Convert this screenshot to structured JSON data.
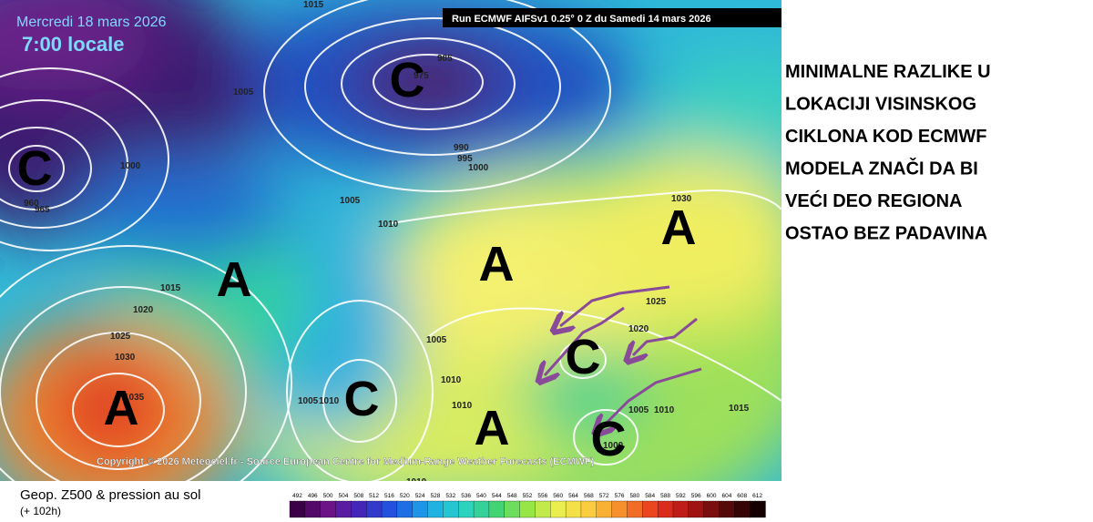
{
  "map": {
    "date": "Mercredi 18 mars 2026",
    "time": "7:00 locale",
    "run": "Run ECMWF AIFSv1 0.25° 0 Z du Samedi 14 mars 2026",
    "copyright": "Copyright © 2026 Meteociel.fr - Source European Centre for Medium-Range Weather Forecasts (ECMWF)",
    "centers": [
      "A",
      "A",
      "C",
      "C",
      "C",
      "A",
      "A",
      "C",
      "A",
      "C"
    ],
    "isobar_labels": [
      "1015",
      "1005",
      "985",
      "975",
      "990",
      "995",
      "1000",
      "1000",
      "1005",
      "1010",
      "1015",
      "1020",
      "1025",
      "1030",
      "1035",
      "965",
      "960",
      "1030",
      "1025",
      "1020",
      "1005",
      "1010",
      "1010",
      "1005",
      "1010",
      "1000",
      "1005",
      "1010",
      "1015",
      "1010"
    ]
  },
  "legend": {
    "title": "Geop. Z500 & pression au sol",
    "lead": "(+ 102h)",
    "scale": [
      492,
      496,
      500,
      504,
      508,
      512,
      516,
      520,
      524,
      528,
      532,
      536,
      540,
      544,
      548,
      552,
      556,
      560,
      564,
      568,
      572,
      576,
      580,
      584,
      588,
      592,
      596,
      600,
      604,
      608,
      612
    ]
  },
  "annotation": {
    "lines": [
      "MINIMALNE RAZLIKE U",
      "LOKACIJI VISINSKOG",
      "CIKLONA KOD ECMWF",
      "MODELA ZNAČI DA BI",
      "VEĆI DEO REGIONA",
      "OSTAO BEZ PADAVINA"
    ]
  }
}
